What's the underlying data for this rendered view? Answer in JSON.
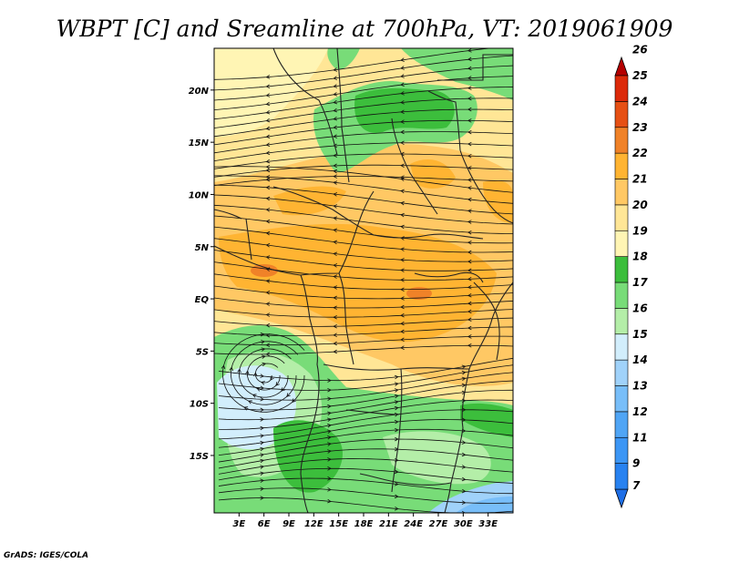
{
  "title": "WBPT [C] and Sreamline at 700hPa, VT: 2019061909",
  "credit": "GrADS: IGES/COLA",
  "map": {
    "lon_range": [
      0,
      36
    ],
    "lat_range": [
      -20.5,
      24
    ],
    "lat_ticks": [
      {
        "value": 20,
        "label": "20N"
      },
      {
        "value": 15,
        "label": "15N"
      },
      {
        "value": 10,
        "label": "10N"
      },
      {
        "value": 5,
        "label": "5N"
      },
      {
        "value": 0,
        "label": "EQ"
      },
      {
        "value": -5,
        "label": "5S"
      },
      {
        "value": -10,
        "label": "10S"
      },
      {
        "value": -15,
        "label": "15S"
      }
    ],
    "lon_ticks": [
      {
        "value": 3,
        "label": "3E"
      },
      {
        "value": 6,
        "label": "6E"
      },
      {
        "value": 9,
        "label": "9E"
      },
      {
        "value": 12,
        "label": "12E"
      },
      {
        "value": 15,
        "label": "15E"
      },
      {
        "value": 18,
        "label": "18E"
      },
      {
        "value": 21,
        "label": "21E"
      },
      {
        "value": 24,
        "label": "24E"
      },
      {
        "value": 27,
        "label": "27E"
      },
      {
        "value": 30,
        "label": "30E"
      },
      {
        "value": 33,
        "label": "33E"
      }
    ]
  },
  "colorbar": {
    "levels": [
      "7",
      "9",
      "11",
      "12",
      "13",
      "14",
      "15",
      "16",
      "17",
      "18",
      "19",
      "20",
      "21",
      "22",
      "23",
      "24",
      "25",
      "26"
    ],
    "colors": [
      "#1e6ee6",
      "#2882f0",
      "#3c96f5",
      "#50a5f5",
      "#78bef9",
      "#a0d2fa",
      "#d2eefc",
      "#b4eea8",
      "#78dc78",
      "#3cbe3c",
      "#fff5b4",
      "#ffe696",
      "#ffc864",
      "#ffb432",
      "#f08228",
      "#e65014",
      "#dc2a0a",
      "#b40000"
    ]
  },
  "chart_data": {
    "type": "heatmap",
    "variable": "WBPT [C] and streamlines at 700hPa",
    "valid_time": "2019061909",
    "units": "C",
    "regions": [
      {
        "area": "northern Sahel/Sahara (~17-24N, 8-30E)",
        "approx_value": 17
      },
      {
        "area": "northwest corner (~15-24N, 0-8E)",
        "approx_value": 20
      },
      {
        "area": "West Africa band (~3-12N)",
        "approx_value": 21
      },
      {
        "area": "Central Africa / Congo basin (~0-8N, 12-30E)",
        "approx_value": 22
      },
      {
        "area": "Gulf of Guinea / Angola coast (~5-12S, 0-12E)",
        "approx_value": 15
      },
      {
        "area": "Southern Africa interior (~10-20S, 12-36E)",
        "approx_value": 17
      },
      {
        "area": "Southeast corner (~17-20S, 30-36E)",
        "approx_value": 13
      }
    ]
  }
}
